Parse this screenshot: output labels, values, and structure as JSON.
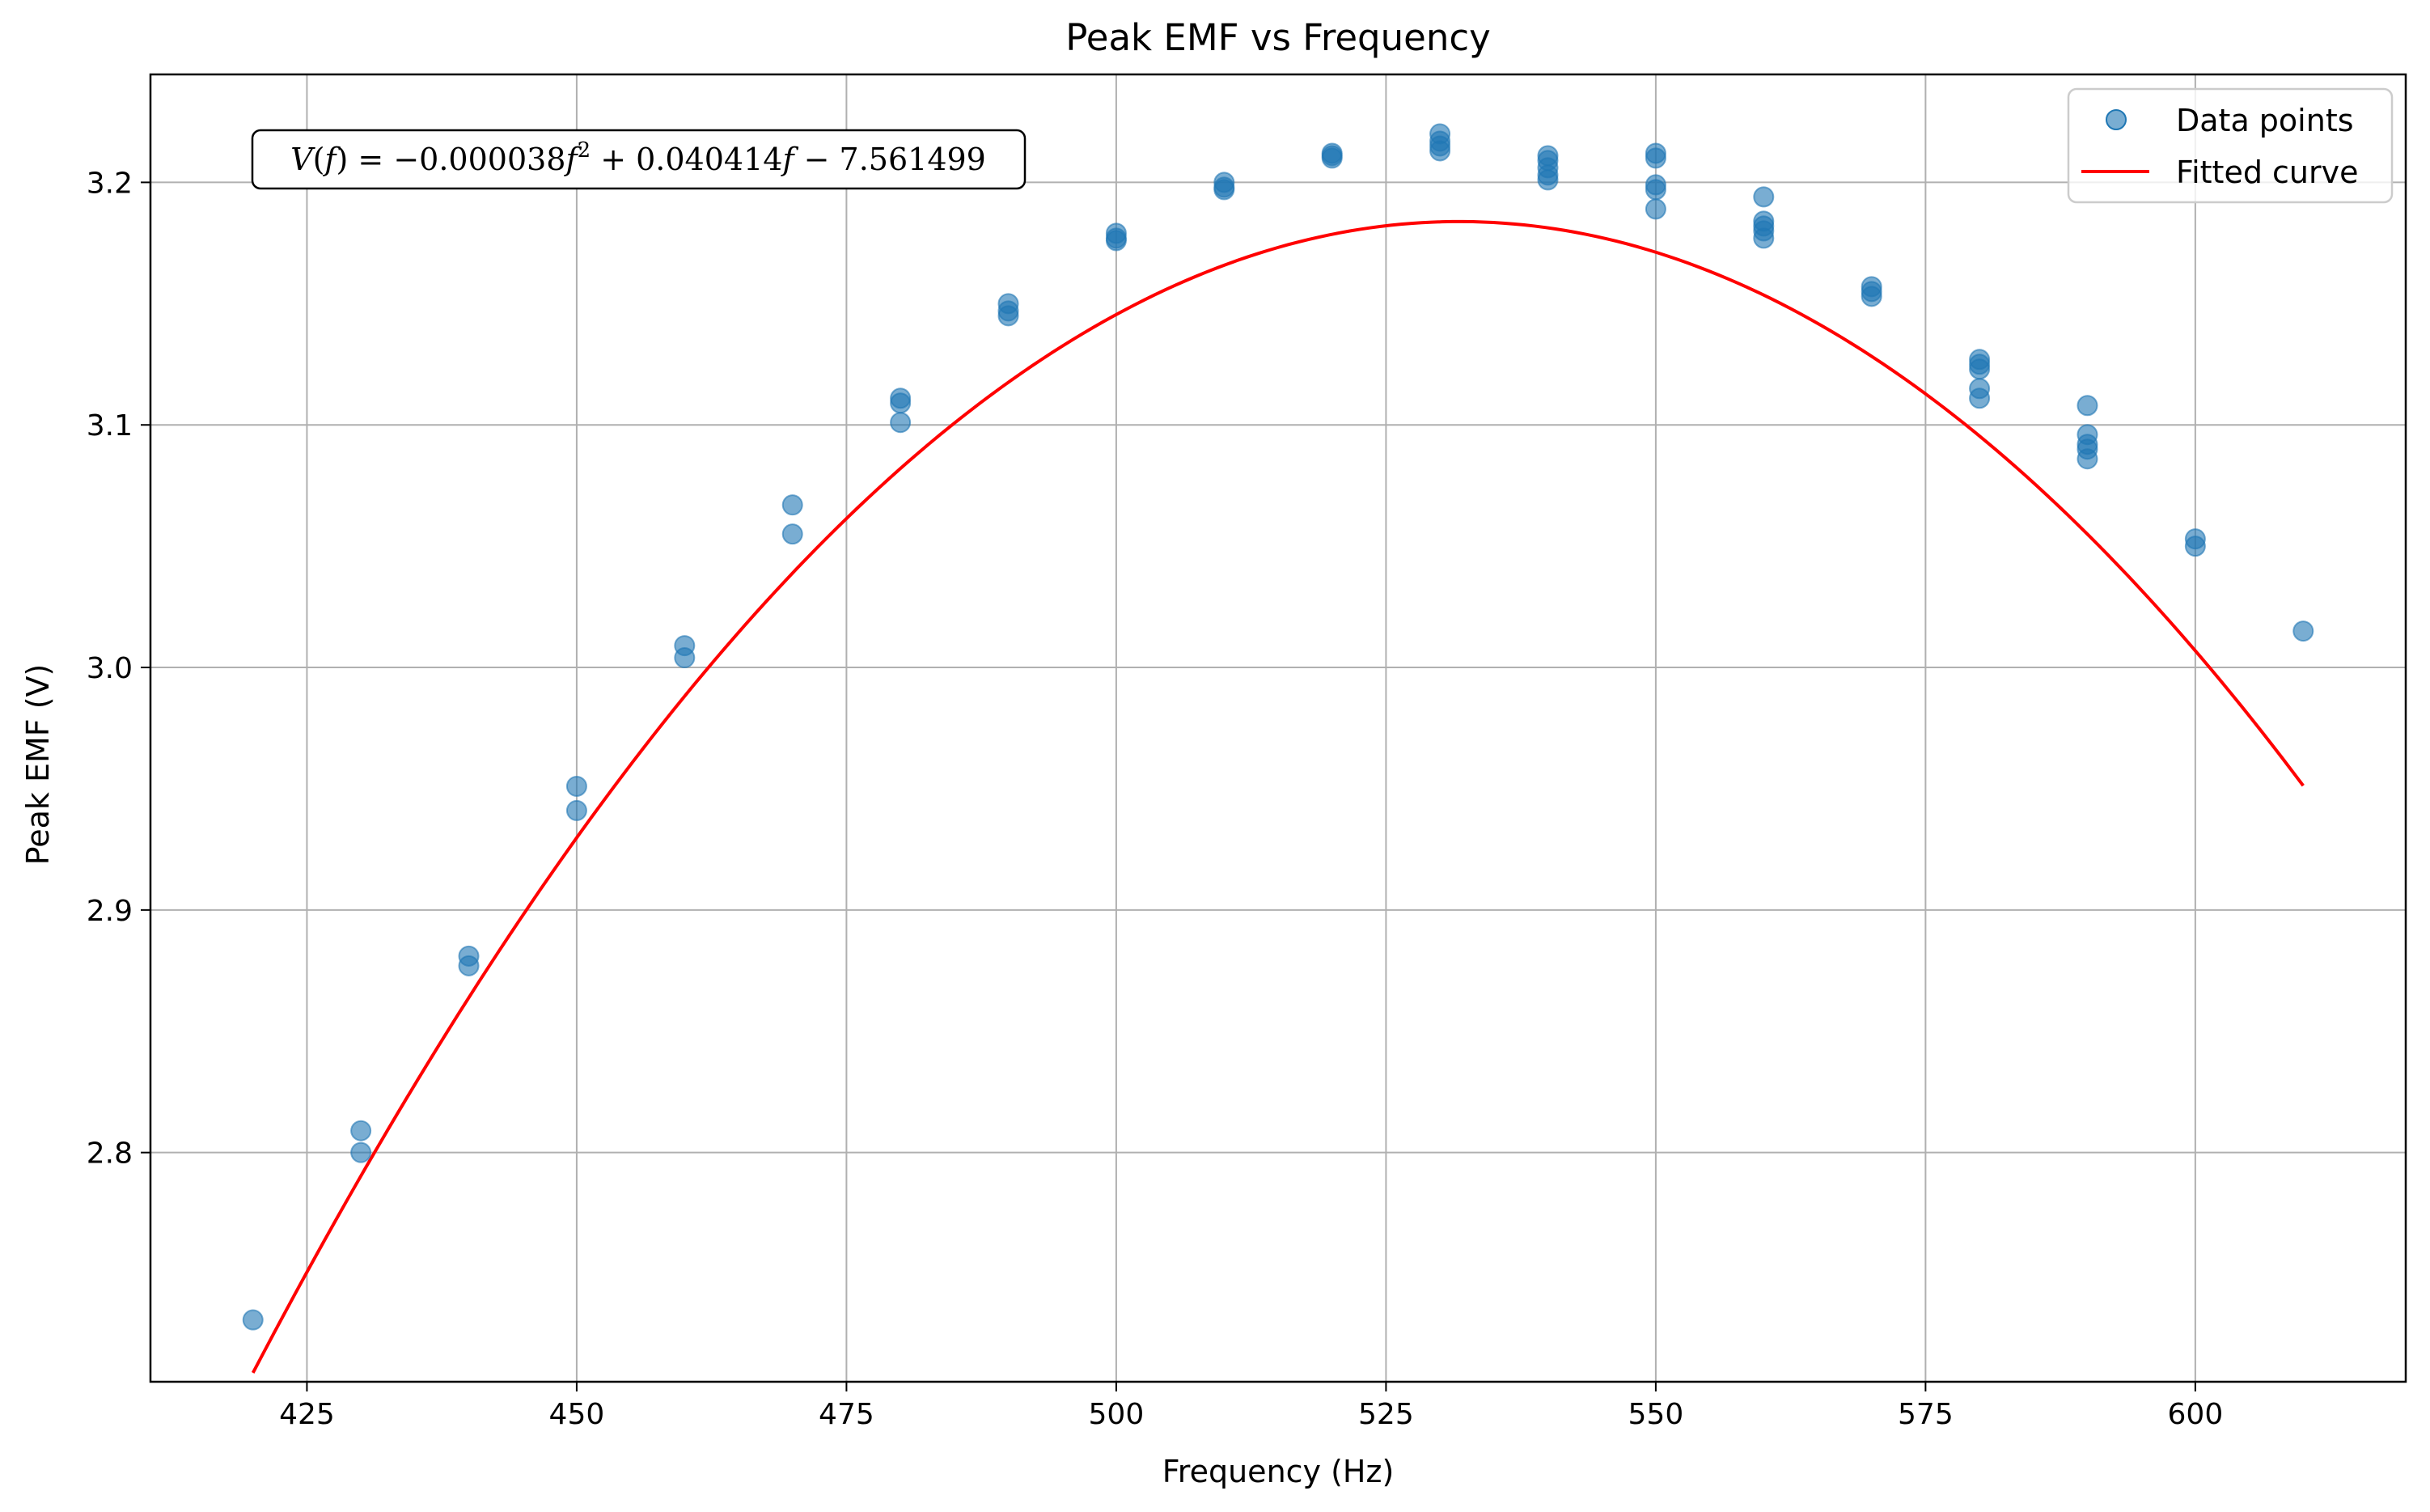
{
  "chart_data": {
    "type": "scatter",
    "title": "Peak EMF vs Frequency",
    "xlabel": "Frequency (Hz)",
    "ylabel": "Peak EMF (V)",
    "xlim": [
      410.5,
      619.5
    ],
    "ylim": [
      2.7055,
      3.2445
    ],
    "x_ticks": [
      425,
      450,
      475,
      500,
      525,
      550,
      575,
      600
    ],
    "y_ticks": [
      2.8,
      2.9,
      3.0,
      3.1,
      3.2
    ],
    "grid": true,
    "legend_position": "top-right",
    "annotation": {
      "V": "V",
      "f": "f",
      "c2": "0.000038",
      "c1": "0.040414",
      "c0": "7.561499"
    },
    "series": [
      {
        "name": "Data points",
        "kind": "scatter",
        "color": "#1f77b4",
        "points": [
          [
            420,
            2.731
          ],
          [
            430,
            2.809
          ],
          [
            430,
            2.8
          ],
          [
            440,
            2.881
          ],
          [
            440,
            2.877
          ],
          [
            450,
            2.951
          ],
          [
            450,
            2.941
          ],
          [
            460,
            3.009
          ],
          [
            460,
            3.004
          ],
          [
            470,
            3.067
          ],
          [
            470,
            3.055
          ],
          [
            480,
            3.111
          ],
          [
            480,
            3.109
          ],
          [
            480,
            3.101
          ],
          [
            490,
            3.15
          ],
          [
            490,
            3.147
          ],
          [
            490,
            3.145
          ],
          [
            500,
            3.179
          ],
          [
            500,
            3.177
          ],
          [
            500,
            3.176
          ],
          [
            510,
            3.2
          ],
          [
            510,
            3.198
          ],
          [
            510,
            3.197
          ],
          [
            520,
            3.212
          ],
          [
            520,
            3.211
          ],
          [
            520,
            3.21
          ],
          [
            530,
            3.22
          ],
          [
            530,
            3.217
          ],
          [
            530,
            3.215
          ],
          [
            530,
            3.213
          ],
          [
            540,
            3.211
          ],
          [
            540,
            3.209
          ],
          [
            540,
            3.206
          ],
          [
            540,
            3.203
          ],
          [
            540,
            3.201
          ],
          [
            550,
            3.212
          ],
          [
            550,
            3.21
          ],
          [
            550,
            3.199
          ],
          [
            550,
            3.197
          ],
          [
            550,
            3.189
          ],
          [
            560,
            3.194
          ],
          [
            560,
            3.184
          ],
          [
            560,
            3.182
          ],
          [
            560,
            3.18
          ],
          [
            560,
            3.177
          ],
          [
            570,
            3.157
          ],
          [
            570,
            3.155
          ],
          [
            570,
            3.153
          ],
          [
            580,
            3.127
          ],
          [
            580,
            3.125
          ],
          [
            580,
            3.123
          ],
          [
            580,
            3.115
          ],
          [
            580,
            3.111
          ],
          [
            590,
            3.108
          ],
          [
            590,
            3.096
          ],
          [
            590,
            3.092
          ],
          [
            590,
            3.09
          ],
          [
            590,
            3.086
          ],
          [
            600,
            3.053
          ],
          [
            600,
            3.05
          ],
          [
            610,
            3.015
          ]
        ]
      },
      {
        "name": "Fitted curve",
        "kind": "line",
        "color": "#ff0000",
        "coefficients": [
          -3.8e-05,
          0.040414,
          -7.561499
        ],
        "x_range": [
          420,
          610
        ]
      }
    ]
  }
}
